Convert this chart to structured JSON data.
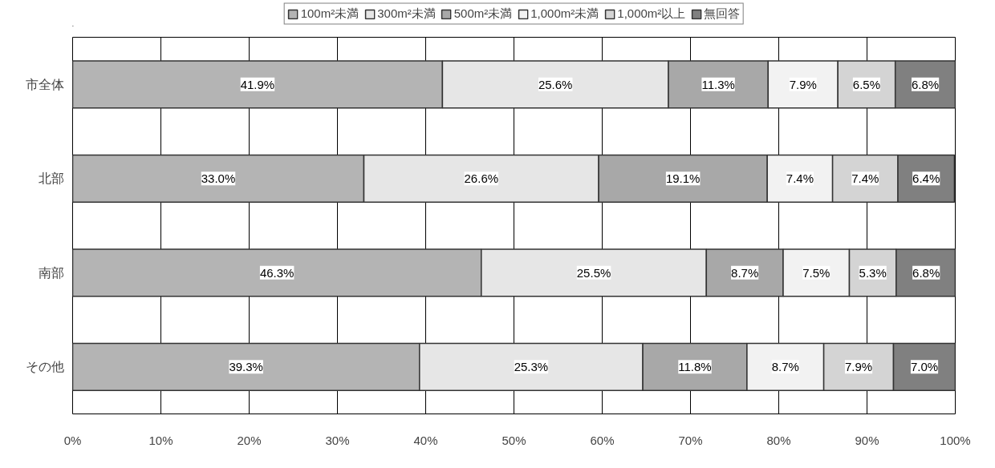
{
  "chart_data": {
    "type": "bar",
    "orientation": "horizontal",
    "stacked": true,
    "categories": [
      "市全体",
      "北部",
      "南部",
      "その他"
    ],
    "series": [
      {
        "name": "100m²未満",
        "color": "#b4b4b4",
        "values": [
          41.9,
          33.0,
          46.3,
          39.3
        ],
        "value_labels": [
          "41.9%",
          "33.0%",
          "46.3%",
          "39.3%"
        ]
      },
      {
        "name": "300m²未満",
        "color": "#e6e6e6",
        "values": [
          25.6,
          26.6,
          25.5,
          25.3
        ],
        "value_labels": [
          "25.6%",
          "26.6%",
          "25.5%",
          "25.3%"
        ]
      },
      {
        "name": "500m²未満",
        "color": "#a8a8a8",
        "values": [
          11.3,
          19.1,
          8.7,
          11.8
        ],
        "value_labels": [
          "11.3%",
          "19.1%",
          "8.7%",
          "11.8%"
        ]
      },
      {
        "name": "1,000m²未満",
        "color": "#f2f2f2",
        "values": [
          7.9,
          7.4,
          7.5,
          8.7
        ],
        "value_labels": [
          "7.9%",
          "7.4%",
          "7.5%",
          "8.7%"
        ]
      },
      {
        "name": "1,000m²以上",
        "color": "#d4d4d4",
        "values": [
          6.5,
          7.4,
          5.3,
          7.9
        ],
        "value_labels": [
          "6.5%",
          "7.4%",
          "5.3%",
          "7.9%"
        ]
      },
      {
        "name": "無回答",
        "color": "#808080",
        "values": [
          6.8,
          6.4,
          6.8,
          7.0
        ],
        "value_labels": [
          "6.8%",
          "6.4%",
          "6.8%",
          "7.0%"
        ]
      }
    ],
    "xlim": [
      0,
      100
    ],
    "xticks": [
      {
        "value": 0,
        "label": "0%"
      },
      {
        "value": 10,
        "label": "10%"
      },
      {
        "value": 20,
        "label": "20%"
      },
      {
        "value": 30,
        "label": "30%"
      },
      {
        "value": 40,
        "label": "40%"
      },
      {
        "value": 50,
        "label": "50%"
      },
      {
        "value": 60,
        "label": "60%"
      },
      {
        "value": 70,
        "label": "70%"
      },
      {
        "value": 80,
        "label": "80%"
      },
      {
        "value": 90,
        "label": "90%"
      },
      {
        "value": 100,
        "label": "100%"
      }
    ],
    "grid": "x",
    "legend": "top"
  }
}
